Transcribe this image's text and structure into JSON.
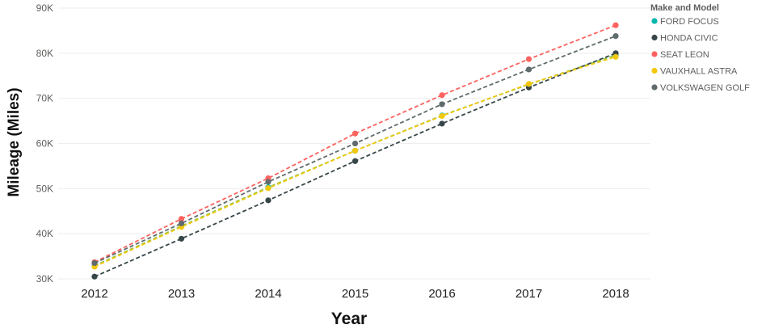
{
  "chart_data": {
    "type": "line",
    "title": "",
    "xlabel": "Year",
    "ylabel": "Mileage (Miles)",
    "x": [
      "2012",
      "2013",
      "2014",
      "2015",
      "2016",
      "2017",
      "2018"
    ],
    "ylim": [
      30000,
      90000
    ],
    "yticks": [
      30000,
      40000,
      50000,
      60000,
      70000,
      80000,
      90000
    ],
    "ytick_labels": [
      "30K",
      "40K",
      "50K",
      "60K",
      "70K",
      "80K",
      "90K"
    ],
    "grid": true,
    "legend_position": "top-right",
    "legend_title": "Make and Model",
    "series": [
      {
        "name": "FORD FOCUS",
        "color": "#01b8aa",
        "line_color": "#8bc34a",
        "values": [
          32900,
          41700,
          50300,
          58400,
          66200,
          73100,
          79600
        ]
      },
      {
        "name": "HONDA CIVIC",
        "color": "#374649",
        "line_color": "#374649",
        "values": [
          30500,
          38900,
          47400,
          56100,
          64400,
          72400,
          80000
        ]
      },
      {
        "name": "SEAT LEON",
        "color": "#fd625e",
        "line_color": "#fd625e",
        "values": [
          33700,
          43300,
          52300,
          62200,
          70700,
          78700,
          86200
        ]
      },
      {
        "name": "VAUXHALL ASTRA",
        "color": "#f2c80f",
        "line_color": "#f2c80f",
        "values": [
          32700,
          41500,
          50100,
          58400,
          66100,
          73200,
          79200
        ]
      },
      {
        "name": "VOLKSWAGEN GOLF",
        "color": "#5f6b6d",
        "line_color": "#5f6b6d",
        "values": [
          33500,
          42300,
          51500,
          60000,
          68700,
          76400,
          83800
        ]
      }
    ]
  }
}
